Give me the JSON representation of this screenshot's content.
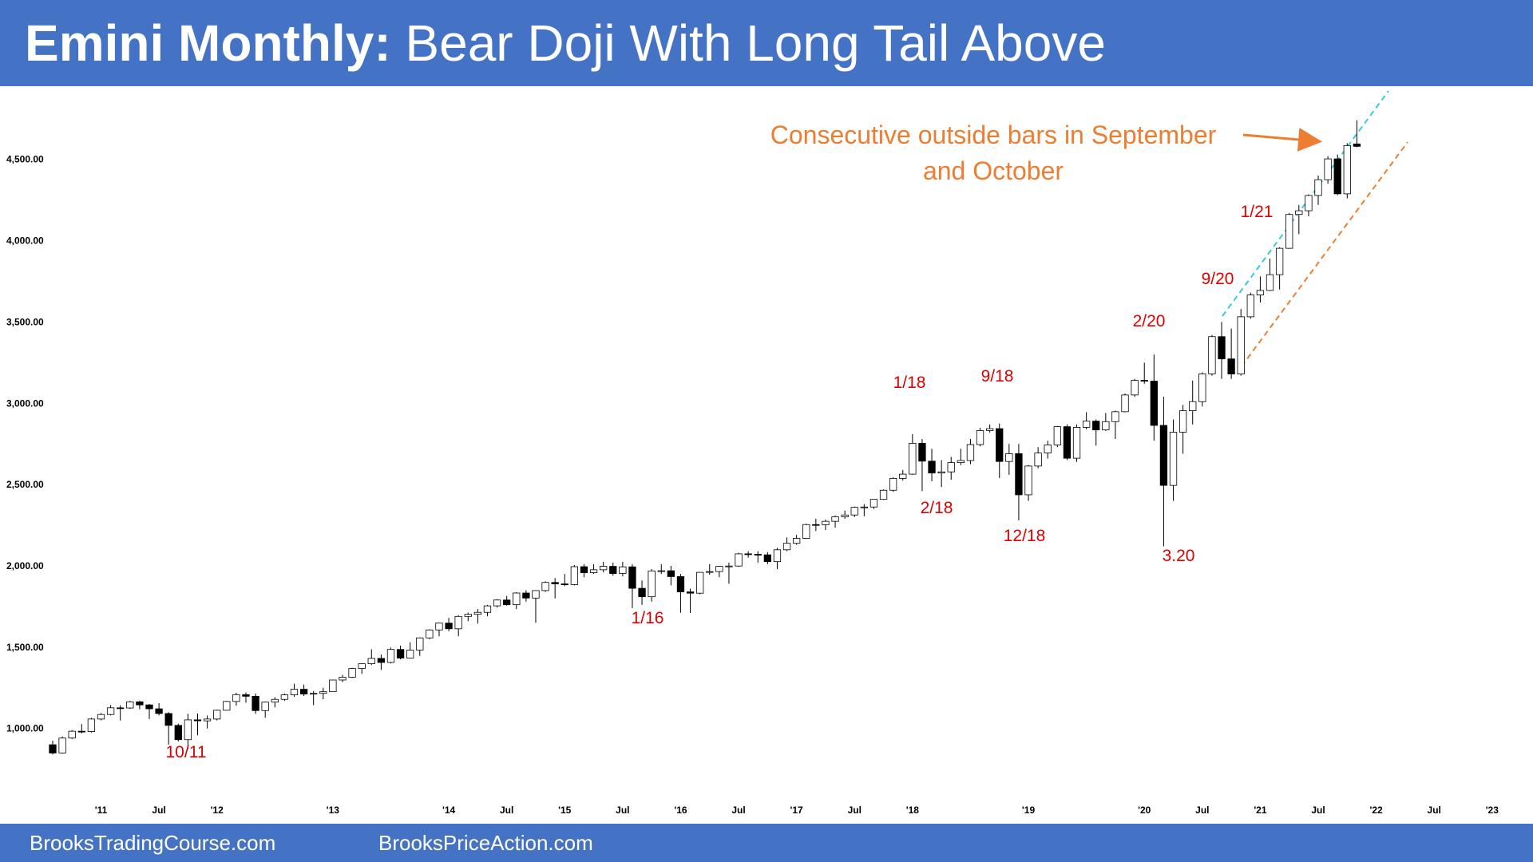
{
  "chart_data": {
    "type": "candlestick",
    "title": "Emini Monthly:",
    "subtitle": "Bear Doji With Long Tail Above",
    "x": [
      "2010-08",
      "2010-09",
      "2010-10",
      "2010-11",
      "2010-12",
      "2011-01",
      "2011-02",
      "2011-03",
      "2011-04",
      "2011-05",
      "2011-06",
      "2011-07",
      "2011-08",
      "2011-09",
      "2011-10",
      "2011-11",
      "2011-12",
      "2012-01",
      "2012-02",
      "2012-03",
      "2012-04",
      "2012-05",
      "2012-06",
      "2012-07",
      "2012-08",
      "2012-09",
      "2012-10",
      "2012-11",
      "2012-12",
      "2013-01",
      "2013-02",
      "2013-03",
      "2013-04",
      "2013-05",
      "2013-06",
      "2013-07",
      "2013-08",
      "2013-09",
      "2013-10",
      "2013-11",
      "2013-12",
      "2014-01",
      "2014-02",
      "2014-03",
      "2014-04",
      "2014-05",
      "2014-06",
      "2014-07",
      "2014-08",
      "2014-09",
      "2014-10",
      "2014-11",
      "2014-12",
      "2015-01",
      "2015-02",
      "2015-03",
      "2015-04",
      "2015-05",
      "2015-06",
      "2015-07",
      "2015-08",
      "2015-09",
      "2015-10",
      "2015-11",
      "2015-12",
      "2016-01",
      "2016-02",
      "2016-03",
      "2016-04",
      "2016-05",
      "2016-06",
      "2016-07",
      "2016-08",
      "2016-09",
      "2016-10",
      "2016-11",
      "2016-12",
      "2017-01",
      "2017-02",
      "2017-03",
      "2017-04",
      "2017-05",
      "2017-06",
      "2017-07",
      "2017-08",
      "2017-09",
      "2017-10",
      "2017-11",
      "2017-12",
      "2018-01",
      "2018-02",
      "2018-03",
      "2018-04",
      "2018-05",
      "2018-06",
      "2018-07",
      "2018-08",
      "2018-09",
      "2018-10",
      "2018-11",
      "2018-12",
      "2019-01",
      "2019-02",
      "2019-03",
      "2019-04",
      "2019-05",
      "2019-06",
      "2019-07",
      "2019-08",
      "2019-09",
      "2019-10",
      "2019-11",
      "2019-12",
      "2020-01",
      "2020-02",
      "2020-03",
      "2020-04",
      "2020-05",
      "2020-06",
      "2020-07",
      "2020-08",
      "2020-09",
      "2020-10",
      "2020-11",
      "2020-12",
      "2021-01",
      "2021-02",
      "2021-03",
      "2021-04",
      "2021-05",
      "2021-06",
      "2021-07",
      "2021-08",
      "2021-09",
      "2021-10",
      "2021-11"
    ],
    "open": [
      900,
      849,
      941,
      983,
      981,
      1058,
      1086,
      1127,
      1126,
      1164,
      1145,
      1121,
      1092,
      1019,
      931,
      1053,
      1047,
      1058,
      1112,
      1166,
      1208,
      1198,
      1110,
      1162,
      1179,
      1207,
      1241,
      1212,
      1216,
      1226,
      1298,
      1315,
      1369,
      1398,
      1431,
      1406,
      1486,
      1433,
      1482,
      1557,
      1606,
      1648,
      1613,
      1689,
      1702,
      1714,
      1754,
      1790,
      1761,
      1833,
      1802,
      1848,
      1898,
      1889,
      1885,
      1995,
      1958,
      1976,
      1997,
      1953,
      1994,
      1862,
      1810,
      1969,
      1970,
      1934,
      1840,
      1832,
      1960,
      1965,
      1997,
      1999,
      2074,
      2071,
      2068,
      2026,
      2099,
      2139,
      2169,
      2254,
      2253,
      2274,
      2302,
      2313,
      2360,
      2362,
      2409,
      2465,
      2538,
      2564,
      2754,
      2644,
      2571,
      2578,
      2635,
      2648,
      2746,
      2832,
      2844,
      2642,
      2690,
      2437,
      2614,
      2694,
      2744,
      2856,
      2662,
      2852,
      2890,
      2836,
      2887,
      2948,
      3051,
      3141,
      3136,
      2864,
      2495,
      2822,
      2954,
      3010,
      3181,
      3410,
      3273,
      3180,
      3532,
      3666,
      3694,
      3791,
      3953,
      4161,
      4184,
      4278,
      4375,
      4503,
      4288,
      4595
    ],
    "high": [
      925,
      950,
      990,
      1027,
      1065,
      1095,
      1144,
      1143,
      1170,
      1170,
      1150,
      1156,
      1100,
      1030,
      1090,
      1092,
      1080,
      1115,
      1170,
      1220,
      1222,
      1215,
      1165,
      1192,
      1215,
      1275,
      1270,
      1230,
      1250,
      1300,
      1330,
      1373,
      1400,
      1487,
      1455,
      1498,
      1510,
      1530,
      1560,
      1610,
      1650,
      1680,
      1697,
      1713,
      1734,
      1760,
      1795,
      1815,
      1838,
      1850,
      1850,
      1905,
      1925,
      1950,
      2005,
      2010,
      2010,
      2025,
      2020,
      2025,
      2010,
      1910,
      1980,
      2010,
      2000,
      1950,
      1860,
      1960,
      2010,
      2000,
      2020,
      2080,
      2090,
      2090,
      2085,
      2110,
      2175,
      2190,
      2260,
      2290,
      2285,
      2310,
      2340,
      2365,
      2380,
      2410,
      2470,
      2545,
      2590,
      2810,
      2780,
      2720,
      2650,
      2670,
      2720,
      2780,
      2850,
      2870,
      2875,
      2750,
      2750,
      2620,
      2730,
      2770,
      2860,
      2870,
      2870,
      2945,
      2900,
      2940,
      2955,
      3060,
      3150,
      3250,
      3300,
      3040,
      2900,
      2990,
      3140,
      3190,
      3420,
      3500,
      3460,
      3580,
      3680,
      3780,
      3890,
      3960,
      4170,
      4220,
      4285,
      4400,
      4520,
      4530,
      4600,
      4740
    ],
    "low": [
      840,
      845,
      935,
      970,
      975,
      1050,
      1080,
      1049,
      1120,
      1118,
      1058,
      1080,
      901,
      920,
      874,
      958,
      1000,
      1050,
      1110,
      1140,
      1158,
      1090,
      1066,
      1130,
      1170,
      1195,
      1200,
      1143,
      1180,
      1225,
      1285,
      1310,
      1336,
      1390,
      1360,
      1400,
      1425,
      1430,
      1446,
      1550,
      1567,
      1598,
      1567,
      1660,
      1645,
      1690,
      1745,
      1755,
      1734,
      1780,
      1650,
      1840,
      1800,
      1875,
      1880,
      1930,
      1950,
      1960,
      1940,
      1935,
      1740,
      1760,
      1780,
      1950,
      1880,
      1712,
      1710,
      1825,
      1945,
      1930,
      1890,
      1995,
      2050,
      2020,
      2010,
      1980,
      2090,
      2130,
      2165,
      2215,
      2220,
      2235,
      2290,
      2300,
      2305,
      2350,
      2405,
      2455,
      2525,
      2560,
      2460,
      2520,
      2485,
      2530,
      2620,
      2625,
      2735,
      2820,
      2540,
      2560,
      2280,
      2400,
      2600,
      2660,
      2730,
      2650,
      2640,
      2840,
      2740,
      2830,
      2780,
      2945,
      3040,
      3120,
      2770,
      2120,
      2400,
      2690,
      2870,
      2980,
      3170,
      3150,
      3150,
      3170,
      3520,
      3620,
      3690,
      3700,
      3950,
      4040,
      4150,
      4220,
      4350,
      4280,
      4260,
      4575
    ],
    "close": [
      849,
      941,
      983,
      981,
      1058,
      1086,
      1127,
      1126,
      1164,
      1145,
      1121,
      1092,
      1019,
      931,
      1053,
      1047,
      1058,
      1112,
      1166,
      1208,
      1198,
      1110,
      1162,
      1179,
      1207,
      1241,
      1212,
      1216,
      1226,
      1298,
      1315,
      1369,
      1398,
      1431,
      1406,
      1486,
      1433,
      1482,
      1557,
      1606,
      1648,
      1613,
      1689,
      1702,
      1714,
      1754,
      1790,
      1761,
      1833,
      1802,
      1848,
      1898,
      1889,
      1885,
      1995,
      1958,
      1976,
      1997,
      1953,
      1994,
      1862,
      1810,
      1969,
      1970,
      1934,
      1840,
      1832,
      1960,
      1965,
      1997,
      1999,
      2074,
      2071,
      2068,
      2026,
      2099,
      2139,
      2169,
      2254,
      2253,
      2274,
      2302,
      2313,
      2360,
      2362,
      2409,
      2465,
      2538,
      2564,
      2754,
      2644,
      2571,
      2578,
      2635,
      2648,
      2746,
      2832,
      2844,
      2642,
      2690,
      2437,
      2614,
      2694,
      2744,
      2856,
      2662,
      2852,
      2890,
      2836,
      2887,
      2948,
      3051,
      3141,
      3136,
      2864,
      2495,
      2822,
      2954,
      3010,
      3181,
      3410,
      3273,
      3180,
      3532,
      3666,
      3694,
      3791,
      3953,
      4161,
      4184,
      4278,
      4375,
      4503,
      4288,
      4585,
      4580
    ],
    "up_color": "#ffffff",
    "down_color": "#000000",
    "xlim": [
      "2010-03",
      "2023-03"
    ],
    "xticks": [
      {
        "value": "2011-01",
        "label": "'11"
      },
      {
        "value": "2011-07",
        "label": "Jul"
      },
      {
        "value": "2012-01",
        "label": "'12"
      },
      {
        "value": "2013-01",
        "label": "'13"
      },
      {
        "value": "2014-01",
        "label": "'14"
      },
      {
        "value": "2014-07",
        "label": "Jul"
      },
      {
        "value": "2015-01",
        "label": "'15"
      },
      {
        "value": "2015-07",
        "label": "Jul"
      },
      {
        "value": "2016-01",
        "label": "'16"
      },
      {
        "value": "2016-07",
        "label": "Jul"
      },
      {
        "value": "2017-01",
        "label": "'17"
      },
      {
        "value": "2017-07",
        "label": "Jul"
      },
      {
        "value": "2018-01",
        "label": "'18"
      },
      {
        "value": "2019-01",
        "label": "'19"
      },
      {
        "value": "2020-01",
        "label": "'20"
      },
      {
        "value": "2020-07",
        "label": "Jul"
      },
      {
        "value": "2021-01",
        "label": "'21"
      },
      {
        "value": "2021-07",
        "label": "Jul"
      },
      {
        "value": "2022-01",
        "label": "'22"
      },
      {
        "value": "2022-07",
        "label": "Jul"
      },
      {
        "value": "2023-01",
        "label": "'23"
      }
    ],
    "ylim": [
      650,
      4950
    ],
    "yticks": [
      {
        "value": 1000,
        "label": "1,000.00"
      },
      {
        "value": 1500,
        "label": "1,500.00"
      },
      {
        "value": 2000,
        "label": "2,000.00"
      },
      {
        "value": 2500,
        "label": "2,500.00"
      },
      {
        "value": 3000,
        "label": "3,000.00"
      },
      {
        "value": 3500,
        "label": "3,500.00"
      },
      {
        "value": 4000,
        "label": "4,000.00"
      },
      {
        "value": 4500,
        "label": "4,500.00"
      }
    ],
    "grid": false,
    "annotations": [
      "10/11",
      "1/16",
      "1/18",
      "2/18",
      "9/18",
      "12/18",
      "2/20",
      "3.20",
      "9/20",
      "1/21"
    ],
    "callout": [
      "Consecutive outside bars in September",
      "and October"
    ]
  },
  "footer": [
    "BrooksTradingCourse.com",
    "BrooksPriceAction.com"
  ]
}
